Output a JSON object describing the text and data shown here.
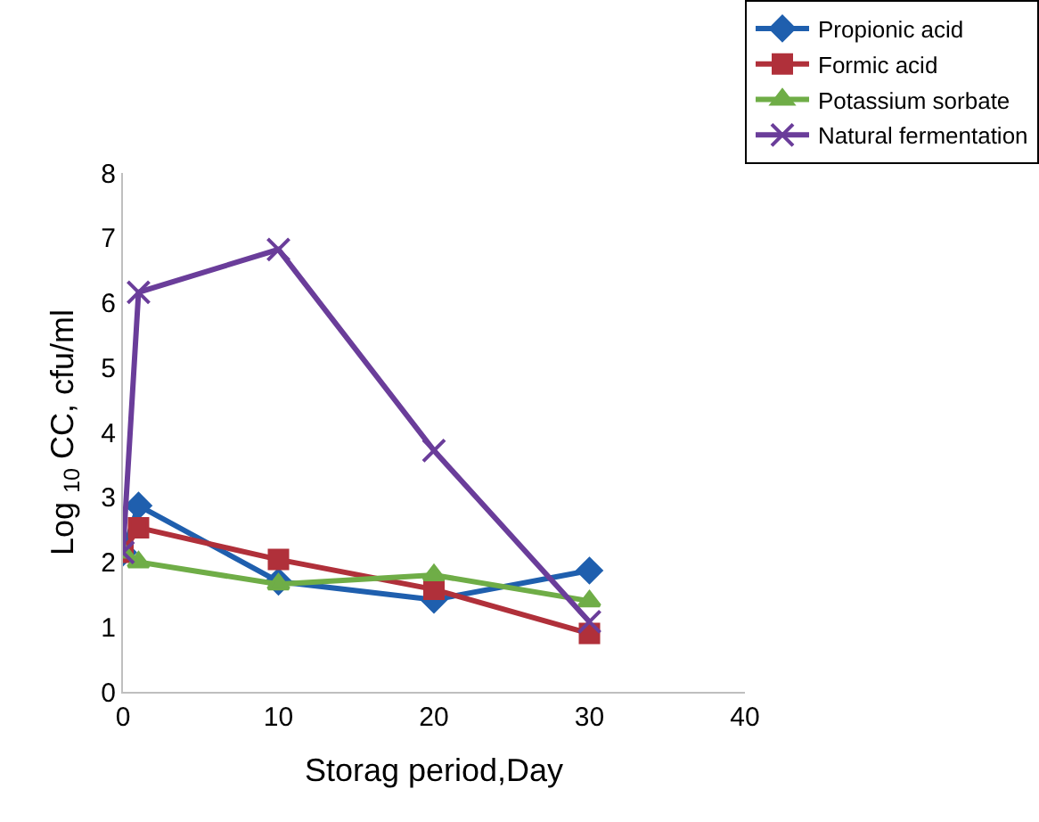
{
  "chart_data": {
    "type": "line",
    "xlabel": "Storag period,Day",
    "ylabel": "Log $_{10}$ CC, cfu/ml",
    "xlim": [
      0,
      40
    ],
    "xticks": [
      0,
      10,
      20,
      30,
      40
    ],
    "ylim": [
      0,
      8
    ],
    "yticks": [
      0,
      1,
      2,
      3,
      4,
      5,
      6,
      7,
      8
    ],
    "x": [
      0,
      1,
      10,
      20,
      30
    ],
    "grid": false,
    "legend": "top right",
    "series": [
      {
        "name": "Propionic acid",
        "color": "#1f5fae",
        "marker": "diamond",
        "values": [
          2.15,
          2.87,
          1.7,
          1.42,
          1.87
        ]
      },
      {
        "name": "Formic acid",
        "color": "#b0303a",
        "marker": "square",
        "values": [
          2.15,
          2.53,
          2.04,
          1.58,
          0.9
        ]
      },
      {
        "name": "Potassium sorbate",
        "color": "#6fad47",
        "marker": "triangle",
        "values": [
          2.15,
          2.0,
          1.66,
          1.8,
          1.4
        ]
      },
      {
        "name": "Natural fermentation",
        "color": "#6a3d9a",
        "marker": "cross",
        "values": [
          2.15,
          6.16,
          6.82,
          3.72,
          1.08
        ]
      }
    ]
  }
}
